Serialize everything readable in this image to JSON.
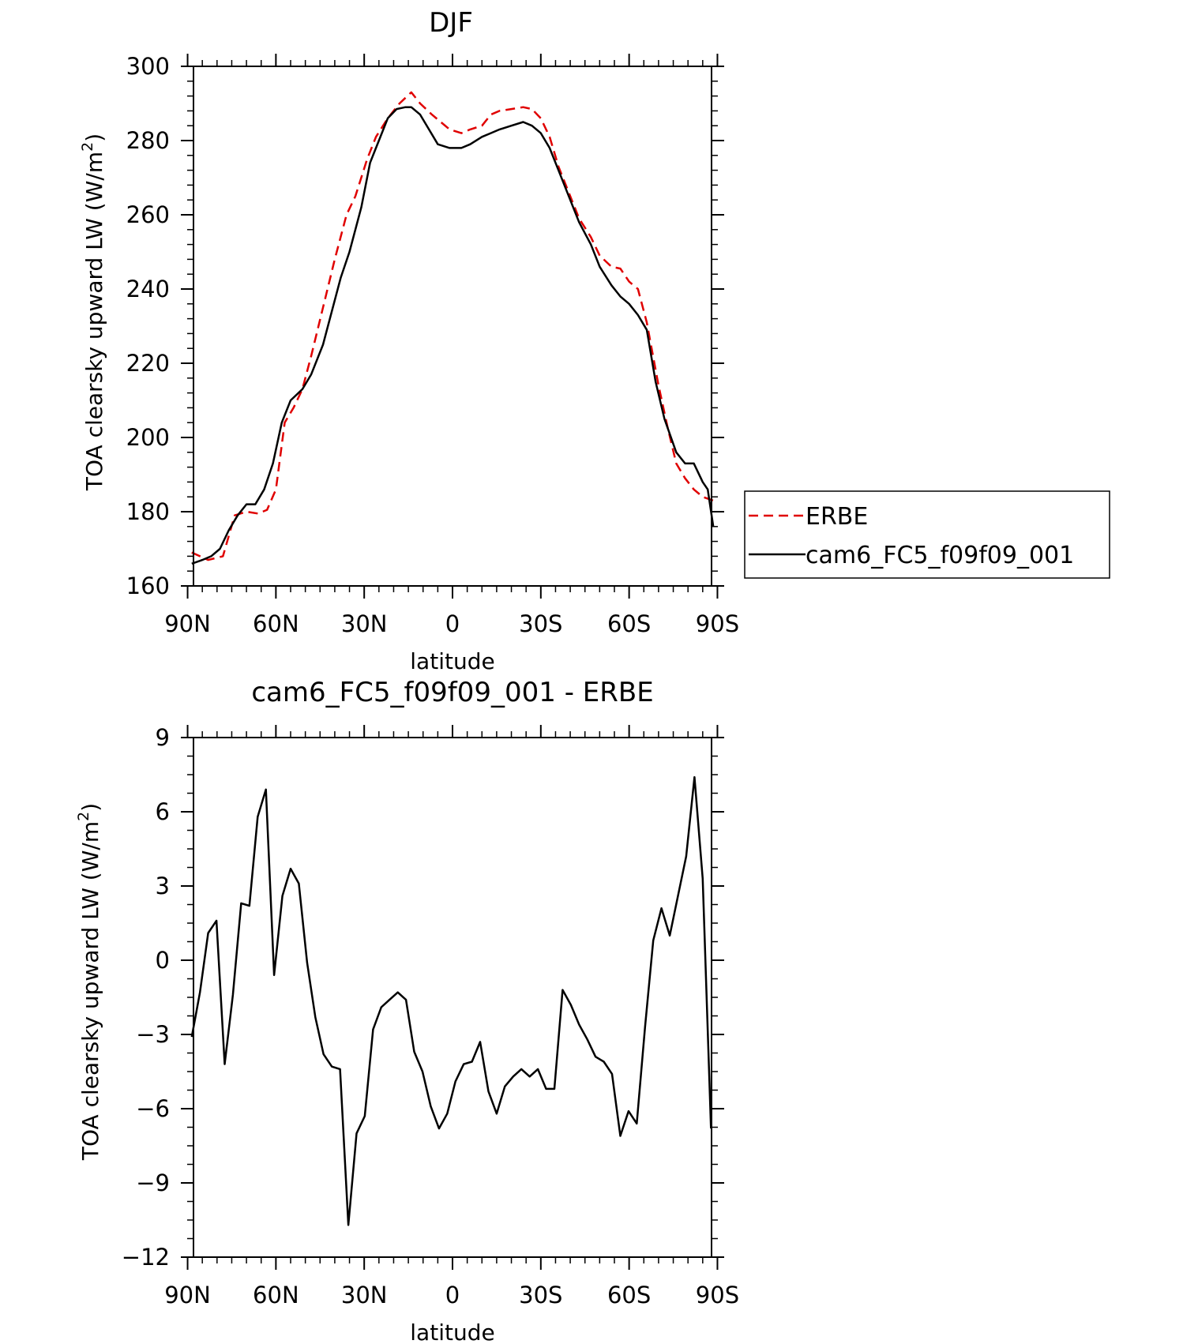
{
  "chart_data": [
    {
      "type": "line",
      "title": "DJF",
      "xlabel": "latitude",
      "ylabel_main": "TOA clearsky upward LW (W/m",
      "ylabel_sup": "2",
      "ylabel_close": ")",
      "xlim": [
        -88,
        88
      ],
      "ylim": [
        160,
        300
      ],
      "x_ticks": [
        {
          "value": -90,
          "label": "90N"
        },
        {
          "value": -60,
          "label": "60N"
        },
        {
          "value": -30,
          "label": "30N"
        },
        {
          "value": 0,
          "label": "0"
        },
        {
          "value": 30,
          "label": "30S"
        },
        {
          "value": 60,
          "label": "60S"
        },
        {
          "value": 90,
          "label": "90S"
        }
      ],
      "y_ticks": [
        {
          "value": 160,
          "label": "160"
        },
        {
          "value": 180,
          "label": "180"
        },
        {
          "value": 200,
          "label": "200"
        },
        {
          "value": 220,
          "label": "220"
        },
        {
          "value": 240,
          "label": "240"
        },
        {
          "value": 260,
          "label": "260"
        },
        {
          "value": 280,
          "label": "280"
        },
        {
          "value": 300,
          "label": "300"
        }
      ],
      "grid": false,
      "legend": "right",
      "series": [
        {
          "name": "ERBE",
          "color": "#e00000",
          "style": "dashed",
          "x": [
            -88.6,
            -83,
            -78,
            -74,
            -70,
            -66,
            -63,
            -60,
            -57,
            -54,
            -51,
            -48,
            -44,
            -40,
            -36,
            -33,
            -29,
            -26,
            -22,
            -18,
            -14,
            -11,
            -7,
            -4,
            -1,
            3,
            6,
            10,
            13,
            16,
            20,
            24,
            27,
            30,
            33,
            36,
            40,
            43,
            47,
            50,
            54,
            57,
            60,
            63,
            66,
            70,
            73,
            76,
            79,
            82,
            85,
            88.6
          ],
          "y": [
            169,
            167,
            168,
            179,
            180,
            179.5,
            180.5,
            186,
            204,
            208,
            213,
            222,
            235,
            248,
            260,
            265,
            275,
            281,
            286,
            290,
            293,
            290,
            287,
            285,
            283,
            282,
            283,
            284,
            287,
            288,
            288.5,
            289,
            288.5,
            286,
            281,
            273,
            265,
            259,
            254,
            249,
            246,
            245.5,
            242,
            240,
            231,
            214,
            203,
            193,
            189,
            186,
            184,
            183
          ]
        },
        {
          "name": "cam6_FC5_f09f09_001",
          "color": "#000000",
          "style": "solid",
          "x": [
            -88.6,
            -85,
            -82,
            -79,
            -76,
            -73,
            -70,
            -67,
            -64,
            -61,
            -58,
            -55,
            -51,
            -48,
            -44,
            -41,
            -38,
            -35,
            -31,
            -28,
            -25,
            -22,
            -19,
            -16,
            -14,
            -11,
            -8,
            -5,
            -1,
            3,
            6,
            10,
            13,
            16,
            20,
            24,
            27,
            30,
            33,
            36,
            40,
            43,
            47,
            50,
            54,
            57,
            60,
            63,
            66,
            69,
            72,
            76,
            79,
            82,
            85,
            86.7,
            88.6
          ],
          "y": [
            166,
            167,
            168,
            170,
            175,
            179,
            182,
            182,
            186,
            193,
            204,
            210,
            213,
            217,
            225,
            234,
            243,
            250,
            262,
            274,
            280,
            286,
            288.5,
            289,
            289,
            287,
            283,
            279,
            278,
            278,
            279,
            281,
            282,
            283,
            284,
            285,
            284,
            282,
            278,
            272,
            264,
            258,
            252,
            246,
            241,
            238,
            236,
            233,
            229,
            215,
            205,
            196,
            193,
            193,
            188,
            186,
            176
          ]
        }
      ]
    },
    {
      "type": "line",
      "title": "cam6_FC5_f09f09_001 - ERBE",
      "xlabel": "latitude",
      "ylabel_main": "TOA clearsky upward LW (W/m",
      "ylabel_sup": "2",
      "ylabel_close": ")",
      "xlim": [
        -88,
        88
      ],
      "ylim": [
        -12,
        9
      ],
      "x_ticks": [
        {
          "value": -90,
          "label": "90N"
        },
        {
          "value": -60,
          "label": "60N"
        },
        {
          "value": -30,
          "label": "30N"
        },
        {
          "value": 0,
          "label": "0"
        },
        {
          "value": 30,
          "label": "30S"
        },
        {
          "value": 60,
          "label": "60S"
        },
        {
          "value": 90,
          "label": "90S"
        }
      ],
      "y_ticks": [
        {
          "value": -12,
          "label": "−12"
        },
        {
          "value": -9,
          "label": "−9"
        },
        {
          "value": -6,
          "label": "−6"
        },
        {
          "value": -3,
          "label": "−3"
        },
        {
          "value": 0,
          "label": "0"
        },
        {
          "value": 3,
          "label": "3"
        },
        {
          "value": 6,
          "label": "6"
        },
        {
          "value": 9,
          "label": "9"
        }
      ],
      "grid": false,
      "series": [
        {
          "name": "cam6_FC5_f09f09_001 - ERBE",
          "color": "#000000",
          "style": "solid",
          "x": [
            -88.6,
            -85.8,
            -83,
            -80.2,
            -77.4,
            -74.6,
            -71.8,
            -69,
            -66.2,
            -63.4,
            -60.6,
            -57.8,
            -55,
            -52.2,
            -49.4,
            -46.6,
            -43.8,
            -41,
            -38.2,
            -35.4,
            -32.6,
            -29.8,
            -27,
            -24.2,
            -21.4,
            -18.6,
            -15.8,
            -13,
            -10.2,
            -7.4,
            -4.6,
            -1.8,
            1,
            3.8,
            6.6,
            9.4,
            12.2,
            15,
            17.8,
            20.6,
            23.4,
            26.2,
            29,
            31.8,
            34.6,
            37.4,
            40.2,
            43,
            45.8,
            48.6,
            51.4,
            54.2,
            57,
            59.8,
            62.6,
            65.4,
            68.2,
            71,
            73.8,
            76.6,
            79.4,
            82.2,
            85,
            87.8
          ],
          "y": [
            -3.1,
            -1.3,
            1.1,
            1.6,
            -4.2,
            -1.4,
            2.3,
            2.2,
            5.8,
            6.9,
            -0.6,
            2.6,
            3.7,
            3.1,
            -0.1,
            -2.3,
            -3.8,
            -4.3,
            -4.4,
            -10.7,
            -7.0,
            -6.3,
            -2.8,
            -1.9,
            -1.6,
            -1.3,
            -1.6,
            -3.7,
            -4.5,
            -5.9,
            -6.8,
            -6.2,
            -4.9,
            -4.2,
            -4.1,
            -3.3,
            -5.3,
            -6.2,
            -5.1,
            -4.7,
            -4.4,
            -4.7,
            -4.4,
            -5.2,
            -5.2,
            -1.2,
            -1.8,
            -2.6,
            -3.2,
            -3.9,
            -4.1,
            -4.6,
            -7.1,
            -6.1,
            -6.6,
            -2.7,
            0.8,
            2.1,
            1.0,
            2.6,
            4.2,
            7.4,
            3.3,
            -6.8
          ]
        }
      ]
    }
  ]
}
